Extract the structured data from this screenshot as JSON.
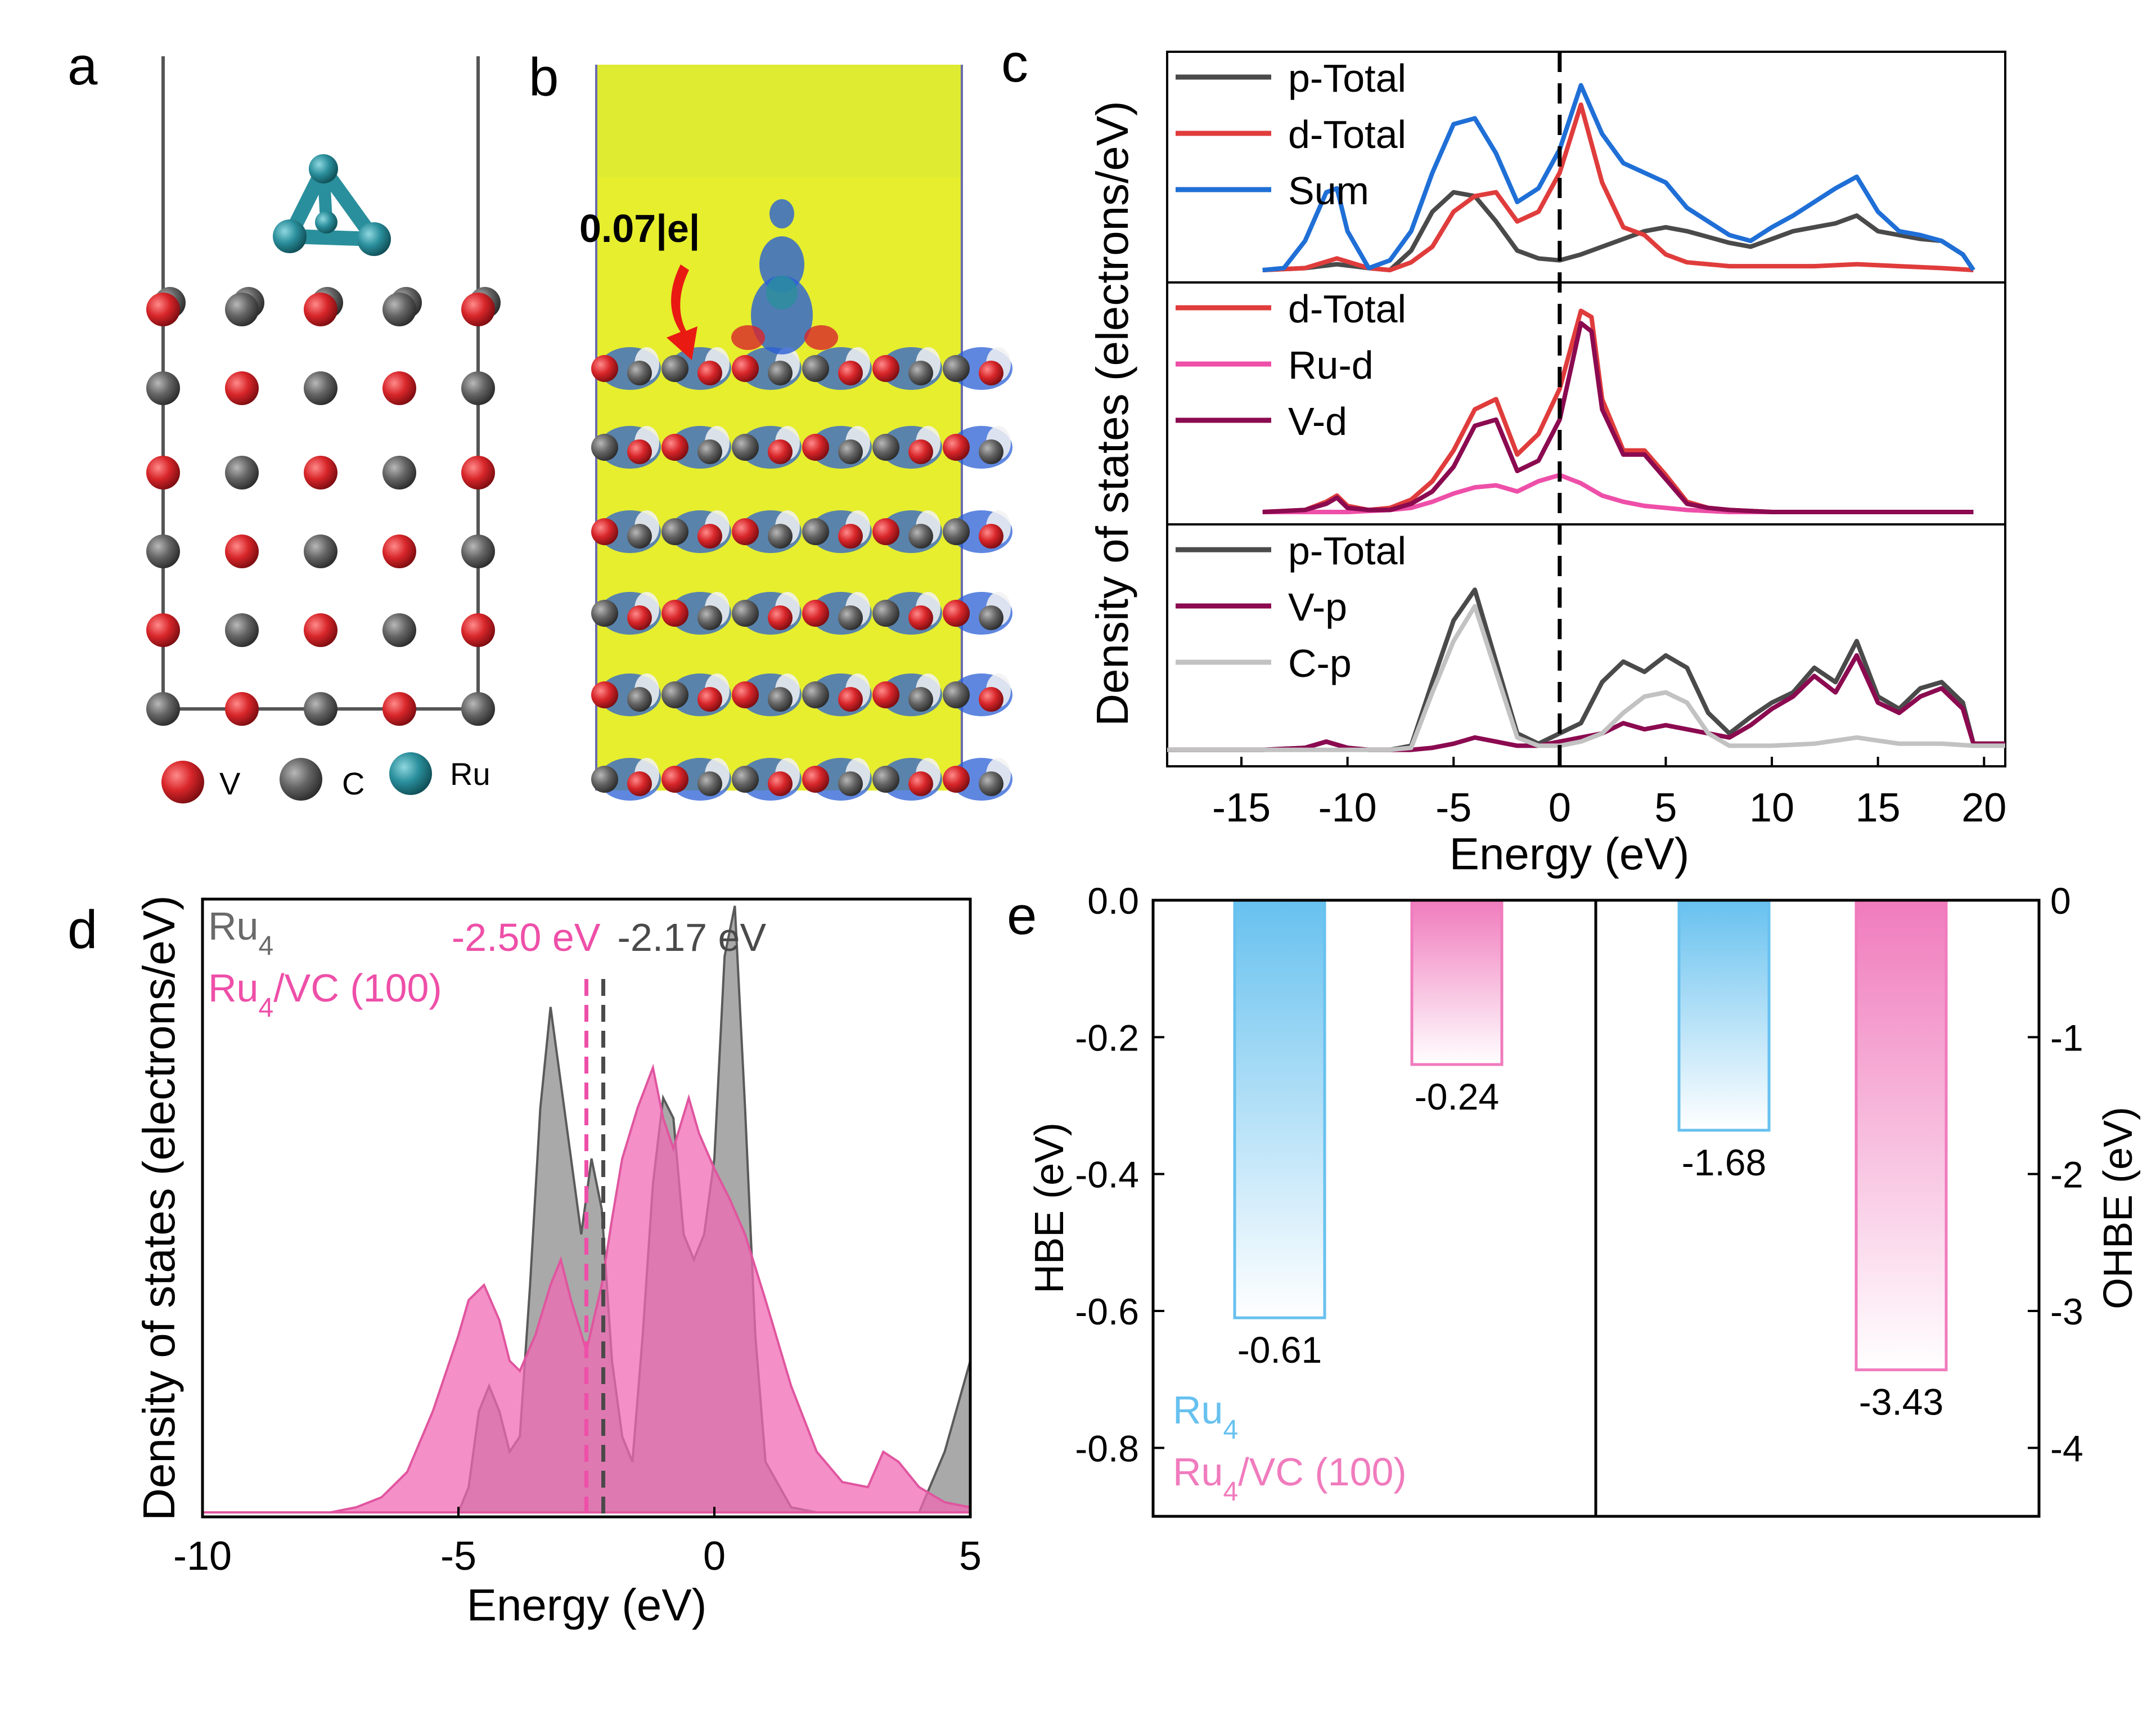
{
  "colors": {
    "red": "#e03c3c",
    "blue": "#1f6fd6",
    "grey": "#4a4a4a",
    "pink": "#ee4fa8",
    "maroon": "#8b0a50",
    "lightgrey": "#c2c2c2",
    "greyfill": "#8c8c8c",
    "pinkfill": "#f06ab4",
    "barblue": "#67c1ef",
    "barpink": "#f07bbd",
    "atom_v": "#d8262a",
    "atom_c": "#646464",
    "atom_ru": "#2a8f9c",
    "isosurface_bg": "#e6ee2e"
  },
  "panel_labels": {
    "a": "a",
    "b": "b",
    "c": "c",
    "d": "d",
    "e": "e"
  },
  "panel_a": {
    "legend": [
      {
        "label": "V",
        "color": "#d8262a"
      },
      {
        "label": "C",
        "color": "#646464"
      },
      {
        "label": "Ru",
        "color": "#2a8f9c"
      }
    ]
  },
  "panel_b": {
    "annotation": "0.07|e|"
  },
  "chart_data": [
    {
      "id": "c",
      "type": "line",
      "xlabel": "Energy (eV)",
      "ylabel": "Density of states (electrons/eV)",
      "xlim": [
        -18.5,
        21
      ],
      "xticks": [
        -15,
        -10,
        -5,
        0,
        5,
        10,
        15,
        20
      ],
      "fermi_line_x": 0,
      "subpanels": [
        {
          "ylim": [
            0,
            1.05
          ],
          "series": [
            {
              "name": "p-Total",
              "color": "#4a4a4a",
              "x": [
                -14,
                -12,
                -10.5,
                -9,
                -8,
                -7,
                -6,
                -5,
                -4,
                -3,
                -2,
                -1,
                0,
                1,
                2,
                3,
                4,
                5,
                6,
                7,
                8,
                9,
                10,
                11,
                12,
                13,
                14,
                15,
                16,
                17,
                18,
                19,
                19.5
              ],
              "y": [
                0,
                0.01,
                0.03,
                0.01,
                0,
                0.1,
                0.3,
                0.4,
                0.38,
                0.25,
                0.1,
                0.06,
                0.05,
                0.08,
                0.12,
                0.16,
                0.2,
                0.22,
                0.2,
                0.17,
                0.14,
                0.12,
                0.16,
                0.2,
                0.22,
                0.24,
                0.28,
                0.2,
                0.18,
                0.16,
                0.15,
                0.08,
                0
              ]
            },
            {
              "name": "d-Total",
              "color": "#e03c3c",
              "x": [
                -14,
                -12,
                -10.5,
                -9,
                -8,
                -7,
                -6,
                -5,
                -4,
                -3,
                -2,
                -1,
                0,
                1,
                2,
                3,
                4,
                5,
                6,
                7,
                8,
                10,
                12,
                14,
                16,
                18,
                19.5
              ],
              "y": [
                0,
                0.01,
                0.06,
                0.01,
                0,
                0.04,
                0.12,
                0.3,
                0.38,
                0.4,
                0.25,
                0.3,
                0.5,
                0.85,
                0.45,
                0.22,
                0.18,
                0.08,
                0.04,
                0.03,
                0.02,
                0.02,
                0.02,
                0.03,
                0.02,
                0.01,
                0
              ]
            },
            {
              "name": "Sum",
              "color": "#1f6fd6",
              "x": [
                -14,
                -13,
                -12,
                -11,
                -10.5,
                -10,
                -9,
                -8,
                -7,
                -6,
                -5,
                -4,
                -3,
                -2,
                -1,
                0,
                1,
                2,
                3,
                4,
                5,
                6,
                7,
                8,
                9,
                10,
                11,
                12,
                13,
                14,
                15,
                16,
                17,
                18,
                19,
                19.5
              ],
              "y": [
                0,
                0.01,
                0.15,
                0.4,
                0.42,
                0.2,
                0.01,
                0.05,
                0.2,
                0.5,
                0.75,
                0.78,
                0.6,
                0.35,
                0.42,
                0.62,
                0.95,
                0.7,
                0.55,
                0.5,
                0.45,
                0.32,
                0.25,
                0.18,
                0.15,
                0.22,
                0.28,
                0.35,
                0.42,
                0.48,
                0.3,
                0.2,
                0.18,
                0.15,
                0.08,
                0
              ]
            }
          ]
        },
        {
          "ylim": [
            0,
            1.05
          ],
          "series": [
            {
              "name": "d-Total",
              "color": "#e03c3c",
              "x": [
                -14,
                -12,
                -11,
                -10.5,
                -10,
                -9,
                -8,
                -7,
                -6,
                -5,
                -4,
                -3,
                -2,
                -1,
                0,
                1,
                1.5,
                2,
                3,
                4,
                5,
                6,
                7,
                8,
                10,
                14,
                19.5
              ],
              "y": [
                0,
                0.01,
                0.05,
                0.08,
                0.03,
                0.01,
                0.02,
                0.06,
                0.15,
                0.3,
                0.5,
                0.55,
                0.28,
                0.38,
                0.6,
                0.98,
                0.95,
                0.55,
                0.3,
                0.3,
                0.18,
                0.05,
                0.02,
                0.01,
                0,
                0,
                0
              ]
            },
            {
              "name": "Ru-d",
              "color": "#ee4fa8",
              "x": [
                -14,
                -10,
                -8,
                -7,
                -6,
                -5,
                -4,
                -3,
                -2,
                -1,
                0,
                1,
                2,
                3,
                4,
                5,
                6,
                8,
                14,
                19.5
              ],
              "y": [
                0,
                0,
                0.01,
                0.02,
                0.05,
                0.09,
                0.12,
                0.13,
                0.1,
                0.15,
                0.18,
                0.14,
                0.08,
                0.05,
                0.03,
                0.02,
                0.01,
                0,
                0,
                0
              ]
            },
            {
              "name": "V-d",
              "color": "#8b0a50",
              "x": [
                -14,
                -12,
                -11,
                -10.5,
                -10,
                -9,
                -8,
                -7,
                -6,
                -5,
                -4,
                -3,
                -2,
                -1,
                0,
                1,
                1.5,
                2,
                3,
                4,
                5,
                6,
                7,
                8,
                10,
                14,
                19.5
              ],
              "y": [
                0,
                0.01,
                0.04,
                0.07,
                0.02,
                0.01,
                0.01,
                0.04,
                0.1,
                0.22,
                0.42,
                0.45,
                0.2,
                0.25,
                0.45,
                0.92,
                0.88,
                0.5,
                0.28,
                0.28,
                0.16,
                0.04,
                0.02,
                0.01,
                0,
                0,
                0
              ]
            }
          ]
        },
        {
          "ylim": [
            0,
            1.05
          ],
          "series": [
            {
              "name": "p-Total",
              "color": "#4a4a4a",
              "x": [
                -18.5,
                -14,
                -12,
                -11,
                -10,
                -9,
                -8,
                -7,
                -6,
                -5,
                -4,
                -3,
                -2,
                -1,
                0,
                1,
                2,
                3,
                4,
                5,
                6,
                7,
                8,
                9,
                10,
                11,
                12,
                13,
                14,
                15,
                16,
                17,
                18,
                19,
                19.5,
                21
              ],
              "y": [
                0.02,
                0.02,
                0.03,
                0.06,
                0.03,
                0.02,
                0.02,
                0.04,
                0.35,
                0.65,
                0.8,
                0.45,
                0.1,
                0.05,
                0.1,
                0.15,
                0.35,
                0.45,
                0.4,
                0.48,
                0.42,
                0.2,
                0.1,
                0.18,
                0.25,
                0.3,
                0.42,
                0.35,
                0.55,
                0.28,
                0.22,
                0.32,
                0.35,
                0.25,
                0.05,
                0.05
              ]
            },
            {
              "name": "V-p",
              "color": "#8b0a50",
              "x": [
                -18.5,
                -14,
                -12,
                -11,
                -10,
                -9,
                -8,
                -7,
                -6,
                -5,
                -4,
                -3,
                -2,
                -1,
                0,
                1,
                2,
                3,
                4,
                5,
                6,
                7,
                8,
                9,
                10,
                11,
                12,
                13,
                14,
                15,
                16,
                17,
                18,
                19,
                19.5,
                21
              ],
              "y": [
                0.02,
                0.02,
                0.03,
                0.06,
                0.03,
                0.02,
                0.02,
                0.02,
                0.03,
                0.05,
                0.08,
                0.06,
                0.04,
                0.04,
                0.06,
                0.08,
                0.1,
                0.15,
                0.12,
                0.14,
                0.12,
                0.1,
                0.08,
                0.14,
                0.22,
                0.28,
                0.38,
                0.3,
                0.48,
                0.25,
                0.2,
                0.28,
                0.32,
                0.22,
                0.05,
                0.05
              ]
            },
            {
              "name": "C-p",
              "color": "#c2c2c2",
              "x": [
                -18.5,
                -14,
                -10,
                -8,
                -7,
                -6,
                -5,
                -4,
                -3,
                -2,
                -1,
                0,
                1,
                2,
                3,
                4,
                5,
                6,
                7,
                8,
                10,
                12,
                14,
                16,
                18,
                19.5,
                21
              ],
              "y": [
                0.02,
                0.02,
                0.02,
                0.02,
                0.03,
                0.3,
                0.55,
                0.72,
                0.4,
                0.08,
                0.04,
                0.04,
                0.06,
                0.1,
                0.2,
                0.28,
                0.3,
                0.25,
                0.1,
                0.04,
                0.04,
                0.05,
                0.08,
                0.05,
                0.05,
                0.04,
                0.04
              ]
            }
          ]
        }
      ]
    },
    {
      "id": "d",
      "type": "area",
      "xlabel": "Energy (eV)",
      "ylabel": "Density of states (electrons/eV)",
      "xlim": [
        -10,
        5
      ],
      "xticks": [
        -10,
        -5,
        0,
        5
      ],
      "ylim": [
        0,
        1.2
      ],
      "series": [
        {
          "name": "Ru4",
          "subscript": "4",
          "base": "Ru",
          "fill": "#8c8c8c",
          "color": "#5a5a5a",
          "x": [
            -10,
            -7,
            -5,
            -4.8,
            -4.6,
            -4.4,
            -4.2,
            -4,
            -3.8,
            -3.6,
            -3.4,
            -3.2,
            -3.0,
            -2.8,
            -2.6,
            -2.4,
            -2.2,
            -2.0,
            -1.8,
            -1.6,
            -1.4,
            -1.2,
            -1.0,
            -0.8,
            -0.6,
            -0.4,
            -0.2,
            0,
            0.2,
            0.4,
            0.6,
            0.8,
            1.0,
            1.5,
            2.0,
            3.0,
            4.0,
            4.5,
            5
          ],
          "y": [
            0,
            0,
            0,
            0.05,
            0.2,
            0.25,
            0.2,
            0.12,
            0.15,
            0.45,
            0.8,
            1.0,
            0.85,
            0.7,
            0.55,
            0.7,
            0.6,
            0.3,
            0.15,
            0.1,
            0.35,
            0.65,
            0.82,
            0.78,
            0.55,
            0.5,
            0.55,
            0.7,
            1.1,
            1.2,
            0.8,
            0.35,
            0.1,
            0.01,
            0,
            0,
            0,
            0.12,
            0.3
          ]
        },
        {
          "name": "Ru4/VC (100)",
          "subscript": "4",
          "base": "Ru",
          "suffix": "/VC (100)",
          "fill": "#f06ab4",
          "color": "#e0559f",
          "x": [
            -10,
            -7.5,
            -7,
            -6.5,
            -6,
            -5.5,
            -5,
            -4.8,
            -4.5,
            -4.2,
            -4,
            -3.8,
            -3.5,
            -3.2,
            -3,
            -2.8,
            -2.5,
            -2.2,
            -2,
            -1.8,
            -1.5,
            -1.2,
            -1,
            -0.8,
            -0.5,
            -0.3,
            0,
            0.3,
            0.6,
            1,
            1.5,
            2,
            2.5,
            3,
            3.3,
            3.6,
            4,
            4.5,
            5
          ],
          "y": [
            0,
            0,
            0.01,
            0.03,
            0.08,
            0.2,
            0.35,
            0.42,
            0.45,
            0.38,
            0.3,
            0.28,
            0.35,
            0.45,
            0.5,
            0.42,
            0.32,
            0.45,
            0.58,
            0.7,
            0.8,
            0.88,
            0.78,
            0.72,
            0.82,
            0.75,
            0.68,
            0.62,
            0.55,
            0.42,
            0.25,
            0.12,
            0.06,
            0.05,
            0.12,
            0.1,
            0.05,
            0.02,
            0.01
          ]
        }
      ],
      "vlines": [
        {
          "x": -2.5,
          "label": "-2.50 eV",
          "color": "#ee4fa8"
        },
        {
          "x": -2.17,
          "label": "-2.17 eV",
          "color": "#4a4a4a"
        }
      ]
    },
    {
      "id": "e",
      "type": "bar",
      "left_axis": {
        "label": "HBE (eV)",
        "ylim": [
          -0.9,
          0.0
        ],
        "ticks": [
          "0.0",
          "-0.2",
          "-0.4",
          "-0.6",
          "-0.8"
        ],
        "tickvals": [
          0,
          -0.2,
          -0.4,
          -0.6,
          -0.8
        ]
      },
      "right_axis": {
        "label": "OHBE (eV)",
        "ylim": [
          -4.5,
          0.0
        ],
        "ticks": [
          "0",
          "-1",
          "-2",
          "-3",
          "-4"
        ],
        "tickvals": [
          0,
          -1,
          -2,
          -3,
          -4
        ]
      },
      "bars": [
        {
          "group": "HBE",
          "series": "Ru4",
          "value": -0.61,
          "label": "-0.61",
          "color": "#67c1ef",
          "axis": "left"
        },
        {
          "group": "HBE",
          "series": "Ru4/VC (100)",
          "value": -0.24,
          "label": "-0.24",
          "color": "#f07bbd",
          "axis": "left"
        },
        {
          "group": "OHBE",
          "series": "Ru4",
          "value": -1.68,
          "label": "-1.68",
          "color": "#67c1ef",
          "axis": "right"
        },
        {
          "group": "OHBE",
          "series": "Ru4/VC (100)",
          "value": -3.43,
          "label": "-3.43",
          "color": "#f07bbd",
          "axis": "right"
        }
      ],
      "legend": [
        {
          "base": "Ru",
          "subscript": "4",
          "suffix": "",
          "color": "#67c1ef"
        },
        {
          "base": "Ru",
          "subscript": "4",
          "suffix": "/VC (100)",
          "color": "#f07bbd"
        }
      ]
    }
  ]
}
